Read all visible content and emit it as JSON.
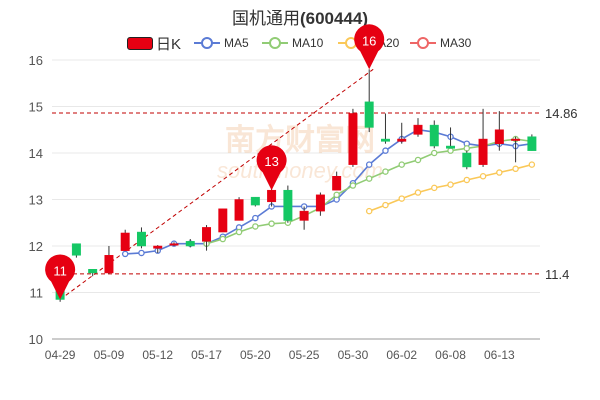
{
  "title": {
    "name": "国机通用",
    "code": "(600444)"
  },
  "legend": [
    {
      "label": "日K",
      "color": "#e60012",
      "kind": "candle"
    },
    {
      "label": "MA5",
      "color": "#5b7bd5",
      "kind": "line"
    },
    {
      "label": "MA10",
      "color": "#91cc75",
      "kind": "line"
    },
    {
      "label": "MA20",
      "color": "#fac858",
      "kind": "line"
    },
    {
      "label": "MA30",
      "color": "#ee6666",
      "kind": "line"
    }
  ],
  "colors": {
    "up": "#e60012",
    "down": "#14c764",
    "grid": "#e8e8e8",
    "dashed_line": "#c00000"
  },
  "watermark": "南方财富网 southmoney.com",
  "chart_data": {
    "type": "candlestick",
    "ylim": [
      10,
      16
    ],
    "y_ticks": [
      10,
      11,
      12,
      13,
      14,
      15,
      16
    ],
    "x_tick_labels": [
      "04-29",
      "05-09",
      "05-12",
      "05-17",
      "05-20",
      "05-25",
      "05-30",
      "06-02",
      "06-08",
      "06-13"
    ],
    "x_tick_index": [
      0,
      3,
      6,
      9,
      12,
      15,
      18,
      21,
      24,
      27
    ],
    "candles": [
      {
        "o": 11.8,
        "h": 11.8,
        "l": 10.8,
        "c": 10.85
      },
      {
        "o": 12.05,
        "h": 12.05,
        "l": 11.75,
        "c": 11.8
      },
      {
        "o": 11.5,
        "h": 11.5,
        "l": 11.35,
        "c": 11.42
      },
      {
        "o": 11.42,
        "h": 12.0,
        "l": 11.4,
        "c": 11.8
      },
      {
        "o": 11.9,
        "h": 12.35,
        "l": 11.9,
        "c": 12.28
      },
      {
        "o": 12.3,
        "h": 12.4,
        "l": 11.95,
        "c": 12.0
      },
      {
        "o": 11.95,
        "h": 12.02,
        "l": 11.85,
        "c": 12.0
      },
      {
        "o": 12.02,
        "h": 12.08,
        "l": 12.0,
        "c": 12.05
      },
      {
        "o": 12.1,
        "h": 12.15,
        "l": 11.97,
        "c": 12.0
      },
      {
        "o": 12.1,
        "h": 12.45,
        "l": 11.9,
        "c": 12.4
      },
      {
        "o": 12.3,
        "h": 12.8,
        "l": 12.3,
        "c": 12.8
      },
      {
        "o": 12.55,
        "h": 13.05,
        "l": 12.55,
        "c": 13.0
      },
      {
        "o": 13.05,
        "h": 13.05,
        "l": 12.85,
        "c": 12.88
      },
      {
        "o": 12.95,
        "h": 13.3,
        "l": 12.85,
        "c": 13.2
      },
      {
        "o": 13.2,
        "h": 13.3,
        "l": 12.5,
        "c": 12.55
      },
      {
        "o": 12.55,
        "h": 12.85,
        "l": 12.35,
        "c": 12.75
      },
      {
        "o": 12.75,
        "h": 13.15,
        "l": 12.65,
        "c": 13.1
      },
      {
        "o": 13.2,
        "h": 13.6,
        "l": 13.2,
        "c": 13.5
      },
      {
        "o": 13.75,
        "h": 14.95,
        "l": 13.7,
        "c": 14.85
      },
      {
        "o": 15.1,
        "h": 15.8,
        "l": 14.45,
        "c": 14.55
      },
      {
        "o": 14.3,
        "h": 14.85,
        "l": 14.2,
        "c": 14.25
      },
      {
        "o": 14.25,
        "h": 14.65,
        "l": 14.2,
        "c": 14.3
      },
      {
        "o": 14.4,
        "h": 14.75,
        "l": 14.35,
        "c": 14.6
      },
      {
        "o": 14.6,
        "h": 14.7,
        "l": 14.1,
        "c": 14.15
      },
      {
        "o": 14.15,
        "h": 14.55,
        "l": 14.1,
        "c": 14.1
      },
      {
        "o": 14.0,
        "h": 14.05,
        "l": 13.65,
        "c": 13.7
      },
      {
        "o": 13.75,
        "h": 14.95,
        "l": 13.7,
        "c": 14.3
      },
      {
        "o": 14.2,
        "h": 14.9,
        "l": 14.05,
        "c": 14.5
      },
      {
        "o": 14.3,
        "h": 14.35,
        "l": 13.8,
        "c": 14.3
      },
      {
        "o": 14.35,
        "h": 14.4,
        "l": 14.05,
        "c": 14.05
      }
    ],
    "series": [
      {
        "name": "MA5",
        "values": [
          null,
          null,
          null,
          null,
          11.83,
          11.85,
          11.9,
          12.05,
          12.05,
          12.05,
          12.2,
          12.4,
          12.6,
          12.85,
          12.85,
          12.85,
          12.85,
          13.0,
          13.35,
          13.75,
          14.05,
          14.3,
          14.5,
          14.45,
          14.35,
          14.2,
          14.15,
          14.2,
          14.15,
          14.2
        ]
      },
      {
        "name": "MA10",
        "values": [
          null,
          null,
          null,
          null,
          null,
          null,
          null,
          null,
          null,
          12.05,
          12.15,
          12.3,
          12.42,
          12.48,
          12.5,
          12.65,
          12.82,
          13.1,
          13.3,
          13.45,
          13.6,
          13.75,
          13.85,
          14.0,
          14.05,
          14.1,
          14.15,
          14.25,
          14.3,
          14.25
        ]
      },
      {
        "name": "MA20",
        "values": [
          null,
          null,
          null,
          null,
          null,
          null,
          null,
          null,
          null,
          null,
          null,
          null,
          null,
          null,
          null,
          null,
          null,
          null,
          null,
          12.75,
          12.88,
          13.02,
          13.15,
          13.25,
          13.32,
          13.42,
          13.5,
          13.58,
          13.66,
          13.75
        ]
      }
    ],
    "reference_lines": [
      {
        "value": 14.86,
        "label": "14.86"
      },
      {
        "value": 11.4,
        "label": "11.4"
      }
    ],
    "markers": [
      {
        "index": 0,
        "value": 10.85,
        "label": "11"
      },
      {
        "index": 13,
        "value": 13.2,
        "label": "13"
      },
      {
        "index": 19,
        "value": 15.8,
        "label": "16"
      }
    ]
  }
}
